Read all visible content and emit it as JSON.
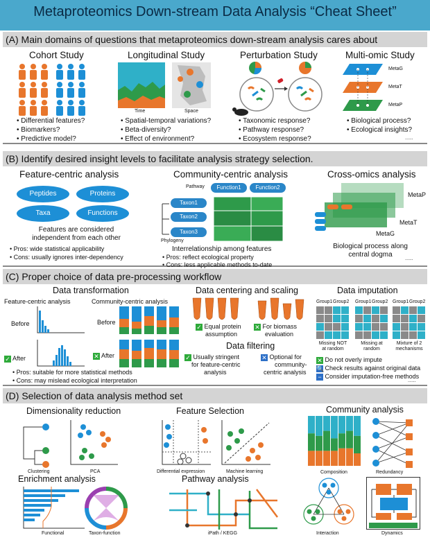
{
  "title": "Metaproteomics Down-stream Data Analysis “Cheat Sheet”",
  "sectionA": {
    "heading": "(A) Main domains of questions that metaproteomics down-stream analysis cares about",
    "cohort": {
      "title": "Cohort Study",
      "bullets": [
        "• Differential features?",
        "• Biomarkers?",
        "• Predictive model?"
      ]
    },
    "longitudinal": {
      "title": "Longitudinal Study",
      "time_label": "Time",
      "space_label": "Space",
      "bullets": [
        "• Spatial-temporal variations?",
        "• Beta-diversity?",
        "• Effect of environment?"
      ]
    },
    "perturbation": {
      "title": "Perturbation Study",
      "bullets": [
        "• Taxonomic response?",
        "• Pathway response?",
        "• Ecosystem response?"
      ]
    },
    "multiomic": {
      "title": "Multi-omic Study",
      "layers": [
        "MetaG",
        "MetaT",
        "MetaP"
      ],
      "bullets": [
        "• Biological process?",
        "• Ecological insights?"
      ],
      "more": "......"
    }
  },
  "sectionB": {
    "heading": "(B) Identify desired insight levels to facilitate analysis strategy selection.",
    "feature": {
      "title": "Feature-centric analysis",
      "ovals": [
        "Peptides",
        "Proteins",
        "Taxa",
        "Functions"
      ],
      "desc1": "Features are considered",
      "desc2": "independent from each other",
      "pros": "• Pros: wide statistical applicability",
      "cons": "• Cons: usually ignores inter-dependency"
    },
    "community": {
      "title": "Community-centric analysis",
      "pathway": "Pathway",
      "phylogeny": "Phylogeny",
      "functions": [
        "Function1",
        "Function2"
      ],
      "taxa": [
        "Taxon1",
        "Taxon2",
        "Taxon3"
      ],
      "desc": "Interrelationship among features",
      "pros": "• Pros: reflect ecological property",
      "cons": "• Cons: less applicable methods to-date"
    },
    "crossomics": {
      "title": "Cross-omics analysis",
      "labels": [
        "MetaP",
        "MetaT",
        "MetaG"
      ],
      "desc1": "Biological process along",
      "desc2": "central dogma",
      "more": "......"
    }
  },
  "sectionC": {
    "heading": "(C) Proper choice of data pre-processing workflow",
    "transformation": {
      "title": "Data transformation",
      "feature_label": "Feature-centric analysis",
      "community_label": "Community-centric analysis",
      "before": "Before",
      "after": "After",
      "pros": "• Pros: suitable for more statistical methods",
      "cons": "• Cons: may mislead ecological interpretation"
    },
    "centering": {
      "title": "Data centering and scaling",
      "opt1a": "Equal protein",
      "opt1b": "assumption",
      "opt2a": "For biomass",
      "opt2b": "evaluation"
    },
    "filtering": {
      "title": "Data filtering",
      "opt1a": "Usually stringent",
      "opt1b": "for feature-centric",
      "opt1c": "analysis",
      "opt2a": "Optional for",
      "opt2b": "community-",
      "opt2c": "centric analysis"
    },
    "imputation": {
      "title": "Data imputation",
      "group1": "Group1",
      "group2": "Group2",
      "captions": [
        [
          "Missing NOT",
          "at random"
        ],
        [
          "Missing at",
          "random"
        ],
        [
          "Mixture of 2",
          "mechanisms"
        ]
      ],
      "tips": [
        "Do not overly impute",
        "Check results against original data",
        "Consider imputation-free methods"
      ],
      "more": "......"
    }
  },
  "sectionD": {
    "heading": "(D) Selection of data analysis method set",
    "dimred": {
      "title": "Dimensionality reduction",
      "clustering": "Clustering",
      "pca": "PCA"
    },
    "featsel": {
      "title": "Feature Selection",
      "diffexp": "Differential expression",
      "ml": "Machine learning"
    },
    "community": {
      "title": "Community analysis",
      "composition": "Composition",
      "redundancy": "Redundancy"
    },
    "enrichment": {
      "title": "Enrichment analysis",
      "functional": "Functional",
      "taxonfunction": "Taxon-function"
    },
    "pathway": {
      "title": "Pathway analysis",
      "ipath": "iPath / KEGG"
    },
    "interaction": "Interaction",
    "dynamics": "Dynamics"
  },
  "colors": {
    "blue": "#1d8fd6",
    "orange": "#e8762c",
    "green": "#2e9a4a",
    "teal": "#2fb0c8",
    "title_bar": "#4aa8cc"
  }
}
